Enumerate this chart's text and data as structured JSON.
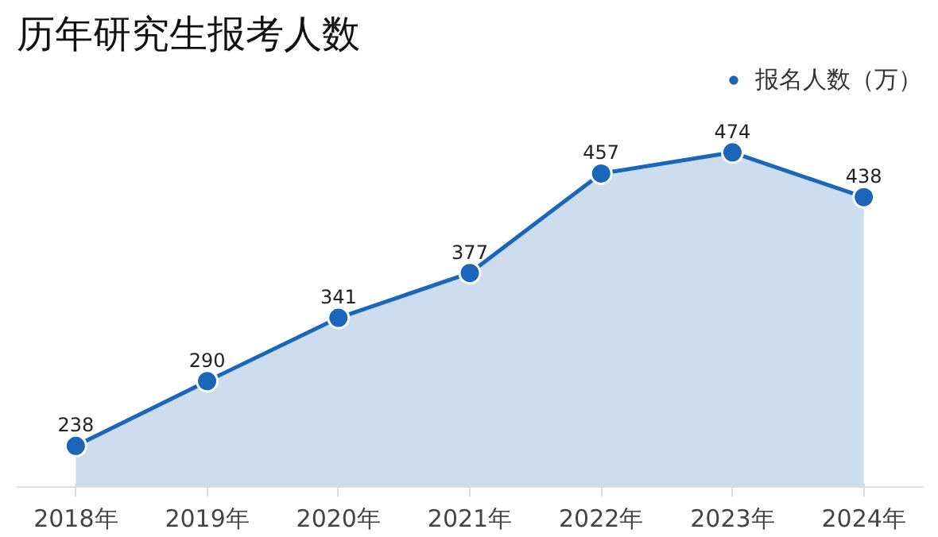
{
  "chart_data": {
    "type": "area",
    "title": "历年研究生报考人数",
    "categories": [
      "2018年",
      "2019年",
      "2020年",
      "2021年",
      "2022年",
      "2023年",
      "2024年"
    ],
    "series": [
      {
        "name": "报名人数（万）",
        "color": "#1a66b8",
        "values": [
          238,
          290,
          341,
          377,
          457,
          474,
          438
        ]
      }
    ],
    "data_labels": true,
    "marker": "circle",
    "legend": "top right",
    "grid": false,
    "tick_labels": "x"
  }
}
